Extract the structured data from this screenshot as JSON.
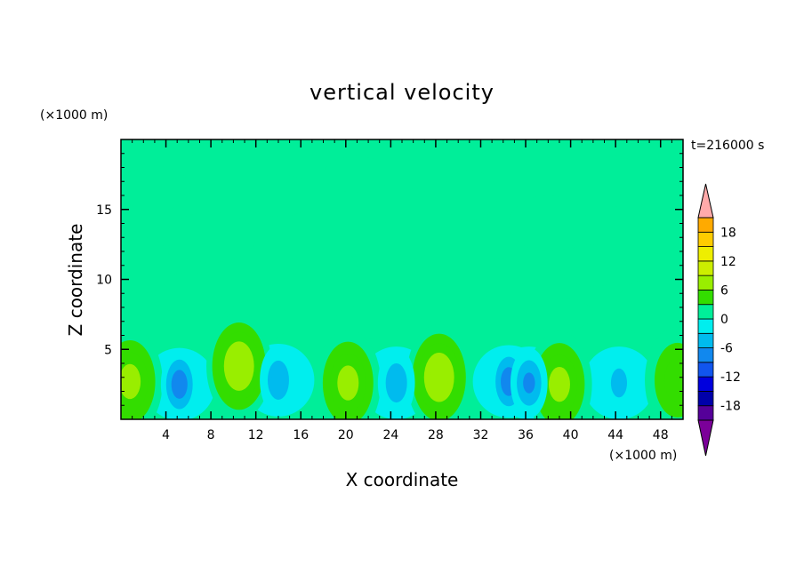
{
  "chart_data": {
    "type": "heatmap",
    "title": "vertical velocity",
    "xlabel": "X coordinate",
    "ylabel": "Z coordinate",
    "x_unit": "(×1000 m)",
    "y_unit": "(×1000 m)",
    "time_label": "t=216000 s",
    "xlim": [
      0,
      50
    ],
    "ylim": [
      0,
      20
    ],
    "x_ticks": [
      4,
      8,
      12,
      16,
      20,
      24,
      28,
      32,
      36,
      40,
      44,
      48
    ],
    "y_ticks": [
      5,
      10,
      15
    ],
    "colorbar": {
      "tick_values": [
        18,
        12,
        6,
        0,
        -6,
        -12,
        -18
      ],
      "level_step": 3,
      "range": [
        -21,
        21
      ],
      "extend": "both"
    },
    "updraft_cores": [
      {
        "x": 0.8,
        "z": 2.7,
        "w": 6
      },
      {
        "x": 10.5,
        "z": 3.8,
        "w": 7
      },
      {
        "x": 20.2,
        "z": 2.6,
        "w": 6
      },
      {
        "x": 28.3,
        "z": 3.0,
        "w": 7
      },
      {
        "x": 39.0,
        "z": 2.5,
        "w": 5
      },
      {
        "x": 49.5,
        "z": 2.8,
        "w": 4
      }
    ],
    "downdraft_cores": [
      {
        "x": 5.2,
        "z": 2.5,
        "w": -9
      },
      {
        "x": 14.0,
        "z": 2.8,
        "w": -6
      },
      {
        "x": 24.5,
        "z": 2.6,
        "w": -5
      },
      {
        "x": 34.5,
        "z": 2.7,
        "w": -8
      },
      {
        "x": 36.3,
        "z": 2.6,
        "w": -7
      },
      {
        "x": 44.3,
        "z": 2.6,
        "w": -4
      }
    ],
    "grid": false,
    "legend": "right colorbar"
  }
}
